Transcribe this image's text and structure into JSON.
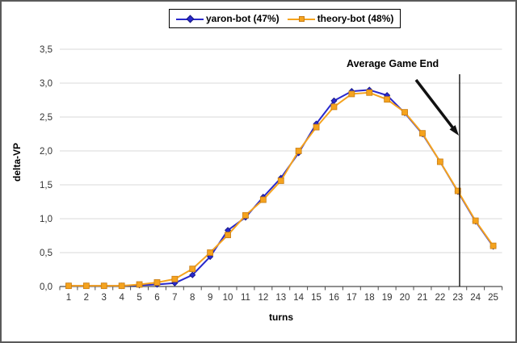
{
  "chart_data": {
    "type": "line",
    "title": "",
    "xlabel": "turns",
    "ylabel": "delta-VP",
    "grid": true,
    "legend_position": "top-center",
    "ylim": [
      0,
      3.5
    ],
    "y_ticks": [
      {
        "label": "0,0",
        "value": 0.0
      },
      {
        "label": "0,5",
        "value": 0.5
      },
      {
        "label": "1,0",
        "value": 1.0
      },
      {
        "label": "1,5",
        "value": 1.5
      },
      {
        "label": "2,0",
        "value": 2.0
      },
      {
        "label": "2,5",
        "value": 2.5
      },
      {
        "label": "3,0",
        "value": 3.0
      },
      {
        "label": "3,5",
        "value": 3.5
      }
    ],
    "categories": [
      1,
      2,
      3,
      4,
      5,
      6,
      7,
      8,
      9,
      10,
      11,
      12,
      13,
      14,
      15,
      16,
      17,
      18,
      19,
      20,
      21,
      22,
      23,
      24,
      25
    ],
    "x_tick_labels": [
      "1",
      "2",
      "3",
      "4",
      "5",
      "6",
      "7",
      "8",
      "9",
      "10",
      "11",
      "12",
      "13",
      "14",
      "15",
      "16",
      "17",
      "18",
      "19",
      "20",
      "21",
      "22",
      "23",
      "24",
      "25"
    ],
    "series": [
      {
        "name": "yaron-bot (47%)",
        "color": "#2929cc",
        "marker": "diamond",
        "marker_edge": "#15157d",
        "values": [
          0.01,
          0.01,
          0.01,
          0.01,
          0.02,
          0.03,
          0.05,
          0.17,
          0.44,
          0.83,
          1.02,
          1.32,
          1.6,
          1.97,
          2.4,
          2.74,
          2.88,
          2.9,
          2.82,
          2.56,
          2.25,
          1.84,
          1.4,
          0.96,
          0.59
        ]
      },
      {
        "name": "theory-bot (48%)",
        "color": "#f5a31e",
        "marker": "square",
        "marker_edge": "#c87d14",
        "values": [
          0.01,
          0.01,
          0.01,
          0.01,
          0.03,
          0.06,
          0.11,
          0.26,
          0.5,
          0.76,
          1.05,
          1.28,
          1.56,
          2.0,
          2.35,
          2.65,
          2.84,
          2.86,
          2.76,
          2.57,
          2.26,
          1.84,
          1.41,
          0.97,
          0.6
        ]
      }
    ],
    "annotation": {
      "text": "Average Game End",
      "vline_turn": 23.1,
      "vline_color": "#000000",
      "arrow_color": "#111111"
    }
  },
  "colors": {
    "grid": "#d9d9d9",
    "axis": "#4d4d4d",
    "tick_text": "#333333",
    "frame_border": "#5a5a5a",
    "plot_bg": "#ffffff"
  }
}
